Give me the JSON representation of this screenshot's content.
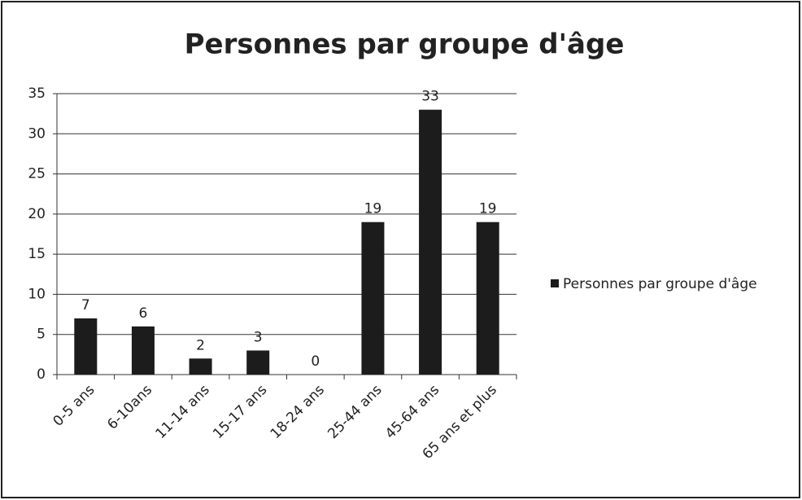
{
  "chart_data": {
    "type": "bar",
    "title": "Personnes par groupe d'âge",
    "categories": [
      "0-5 ans",
      "6-10ans",
      "11-14 ans",
      "15-17 ans",
      "18-24 ans",
      "25-44 ans",
      "45-64 ans",
      "65 ans et plus"
    ],
    "series": [
      {
        "name": "Personnes par groupe d'âge",
        "color": "#1c1c1c",
        "values": [
          7,
          6,
          2,
          3,
          0,
          19,
          33,
          19
        ]
      }
    ],
    "ylim": [
      0,
      35
    ],
    "yticks": [
      0,
      5,
      10,
      15,
      20,
      25,
      30,
      35
    ],
    "grid": true,
    "legend": "right",
    "data_labels": true
  }
}
